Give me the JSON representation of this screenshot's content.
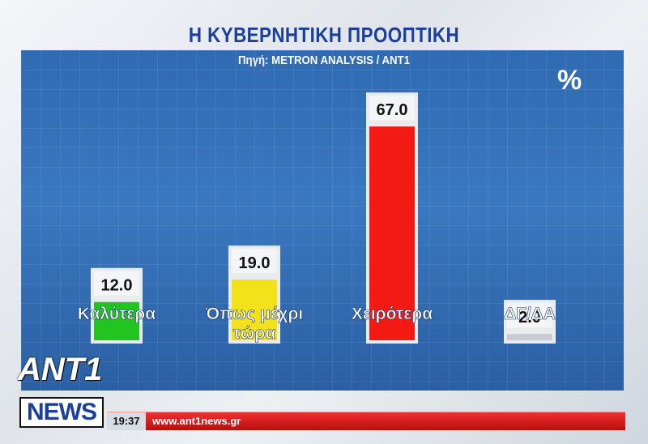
{
  "chart_data": {
    "type": "bar",
    "title": "Η ΚΥΒΕΡΝΗΤΙΚΗ ΠΡΟΟΠΤΙΚΗ",
    "subtitle": "Πηγή: METRON ANALYSIS / ANT1",
    "unit": "%",
    "categories": [
      "Καλύτερα",
      "Όπως μέχρι τώρα",
      "Χειρότερα",
      "ΔΓ/ΔΑ"
    ],
    "values": [
      12.0,
      19.0,
      67.0,
      2.0
    ],
    "value_labels": [
      "12.0",
      "19.0",
      "67.0",
      "2.0"
    ],
    "colors": [
      "#22c41f",
      "#f3e21a",
      "#f21a12",
      "#c8ccd2"
    ],
    "ylim": [
      0,
      70
    ],
    "legend": "none",
    "grid": true
  },
  "logo": {
    "top": "ANT1",
    "bottom": "NEWS"
  },
  "ticker": {
    "time": "19:37",
    "url": "www.ant1news.gr"
  }
}
